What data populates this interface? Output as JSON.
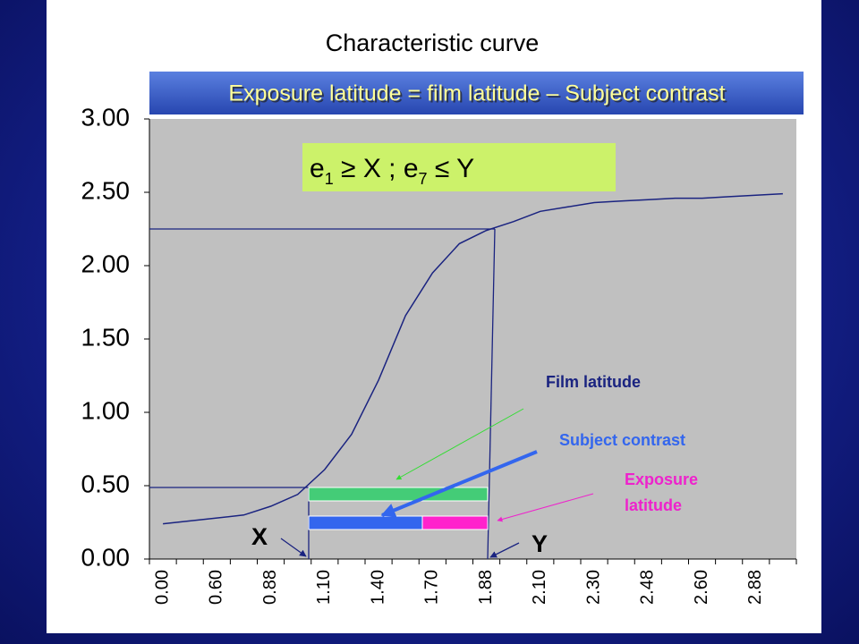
{
  "chart_data": {
    "type": "line",
    "title": "Characteristic curve",
    "subtitle": "Exposure latitude = film latitude – Subject contrast",
    "categories": [
      "0.00",
      null,
      "0.60",
      null,
      "0.88",
      null,
      "1.10",
      null,
      "1.40",
      null,
      "1.70",
      null,
      "1.88",
      null,
      "2.10",
      null,
      "2.30",
      null,
      "2.48",
      null,
      "2.60",
      null,
      "2.88",
      null
    ],
    "values": [
      0.24,
      0.26,
      0.28,
      0.3,
      0.36,
      0.44,
      0.61,
      0.85,
      1.22,
      1.66,
      1.95,
      2.15,
      2.24,
      2.3,
      2.37,
      2.4,
      2.43,
      2.44,
      2.45,
      2.46,
      2.46,
      2.47,
      2.48,
      2.49
    ],
    "color": "#1a2380",
    "ylim": [
      0,
      3
    ],
    "yticks": [
      {
        "value": 0,
        "label": "0.00"
      },
      {
        "value": 0.5,
        "label": "0.50"
      },
      {
        "value": 1,
        "label": "1.00"
      },
      {
        "value": 1.5,
        "label": "1.50"
      },
      {
        "value": 2,
        "label": "2.00"
      },
      {
        "value": 2.5,
        "label": "2.50"
      },
      {
        "value": 3,
        "label": "3.00"
      }
    ],
    "grid": false,
    "formula": [
      "e",
      "1",
      " ≥ X ; e",
      "7",
      " ≤ Y"
    ],
    "annotations": {
      "film_latitude": "Film latitude",
      "subject_contrast": "Subject contrast",
      "exposure_latitude": "Exposure latitude",
      "x_marker": "X",
      "y_marker": "Y"
    }
  }
}
